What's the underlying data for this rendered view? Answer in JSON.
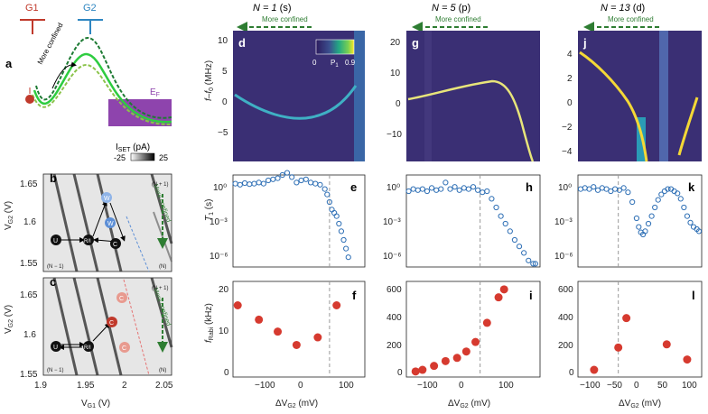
{
  "panel_letters": {
    "a": "a",
    "b": "b",
    "c": "c",
    "d": "d",
    "e": "e",
    "f": "f",
    "g": "g",
    "h": "h",
    "i": "i",
    "j": "j",
    "k": "k",
    "l": "l"
  },
  "gates": {
    "g1": "G1",
    "g2": "G2",
    "g1_color": "#c0392b",
    "g2_color": "#2e86c1"
  },
  "schematic": {
    "arrow_label": "More confined",
    "fermi_label": "E",
    "fermi_sub": "F"
  },
  "colorbar_iset": {
    "label_main": "I",
    "label_sub": "SET",
    "label_unit": " (pA)",
    "min": "-25",
    "max": "25"
  },
  "stability": {
    "ylabel_main": "V",
    "ylabel_sub": "G2",
    "ylabel_unit": " (V)",
    "xlabel_main": "V",
    "xlabel_sub": "G1",
    "xlabel_unit": " (V)",
    "yticks": [
      "1.65",
      "1.6",
      "1.55"
    ],
    "xticks": [
      "1.9",
      "1.95",
      "2",
      "2.05"
    ],
    "n_plus": "(N + 1)",
    "n_minus": "(N − 1)",
    "n": "(N)",
    "more_confined": "More confined",
    "nodes_b": {
      "u": "U",
      "rm": "R/I",
      "w": "W",
      "c": "C"
    },
    "nodes_c": {
      "u": "U",
      "rm": "R/I",
      "c": "C"
    }
  },
  "columns": [
    {
      "n": "N = 1",
      "orbital": " (s)"
    },
    {
      "n": "N = 5",
      "orbital": " (p)"
    },
    {
      "n": "N = 13",
      "orbital": " (d)"
    }
  ],
  "top_arrow_label": "More confined",
  "colorbar_p1": {
    "min": "0",
    "label": "P",
    "sub": "1",
    "max": "0.9"
  },
  "axis_labels": {
    "spectrum_y": "f–f",
    "spectrum_y_sub": "0",
    "spectrum_y_unit": " (MHz)",
    "t1_y": "T",
    "t1_y_sub": "1",
    "t1_y_unit": " (s)",
    "rabi_y": "f",
    "rabi_y_sub": "Rabi",
    "rabi_y_unit": " (kHz)",
    "x": "ΔV",
    "x_sub": "G2",
    "x_unit": " (mV)"
  },
  "ticks": {
    "d_y": [
      "10",
      "5",
      "0",
      "−5"
    ],
    "g_y": [
      "20",
      "10",
      "0",
      "−10"
    ],
    "j_y": [
      "4",
      "2",
      "0",
      "−2",
      "−4"
    ],
    "t1_y": [
      "10⁰",
      "10⁻³",
      "10⁻⁶"
    ],
    "f_y": [
      "20",
      "10",
      "0"
    ],
    "il_y": [
      "600",
      "400",
      "200",
      "0"
    ],
    "f_x": [
      "−100",
      "0",
      "100"
    ],
    "i_x": [
      "−100",
      "0",
      "100"
    ],
    "l_x": [
      "−100",
      "−50",
      "0",
      "50",
      "100"
    ]
  },
  "chart_data": [
    {
      "type": "scatter",
      "panel": "f",
      "title": "N = 1 (s)",
      "xlabel": "ΔV_G2 (mV)",
      "ylabel": "f_Rabi (kHz)",
      "xlim": [
        -150,
        130
      ],
      "ylim": [
        0,
        20
      ],
      "x": [
        -140,
        -95,
        -55,
        -15,
        30,
        70
      ],
      "values": [
        15,
        12,
        9.5,
        6.7,
        8.3,
        15
      ],
      "dashed_x": 55
    },
    {
      "type": "scatter",
      "panel": "i",
      "title": "N = 5 (p)",
      "xlabel": "ΔV_G2 (mV)",
      "ylabel": "f_Rabi (kHz)",
      "xlim": [
        -130,
        160
      ],
      "ylim": [
        0,
        600
      ],
      "x": [
        -110,
        -95,
        -70,
        -45,
        -20,
        0,
        20,
        45,
        70,
        82
      ],
      "values": [
        35,
        45,
        70,
        100,
        120,
        160,
        220,
        340,
        500,
        550
      ],
      "dashed_x": 30
    },
    {
      "type": "scatter",
      "panel": "l",
      "title": "N = 13 (d)",
      "xlabel": "ΔV_G2 (mV)",
      "ylabel": "f_Rabi (kHz)",
      "xlim": [
        -105,
        125
      ],
      "ylim": [
        0,
        600
      ],
      "x": [
        -75,
        -30,
        -15,
        60,
        98
      ],
      "values": [
        45,
        185,
        370,
        205,
        110
      ],
      "dashed_x": -30
    },
    {
      "type": "scatter",
      "panel": "e",
      "ylabel": "T1 (s)",
      "yscale": "log",
      "ylim": [
        -7.5,
        1
      ],
      "xlim": [
        -150,
        130
      ],
      "x": [
        -145,
        -135,
        -125,
        -115,
        -105,
        -95,
        -85,
        -75,
        -65,
        -55,
        -45,
        -35,
        -25,
        -15,
        -5,
        5,
        15,
        25,
        35,
        45,
        50,
        55,
        60,
        65,
        70,
        75,
        80,
        85,
        90,
        95
      ],
      "values": [
        0.2,
        0.1,
        0.25,
        0.15,
        0.2,
        0.3,
        0.2,
        0.5,
        0.6,
        0.7,
        1.0,
        1.2,
        0.8,
        0.3,
        0.5,
        0.6,
        0.3,
        0.2,
        0.1,
        -0.3,
        -0.8,
        -1.5,
        -2.2,
        -2.5,
        -2.8,
        -3.5,
        -4.2,
        -5.0,
        -5.8,
        -6.6
      ],
      "dashed_x": 55
    },
    {
      "type": "scatter",
      "panel": "h",
      "ylabel": "T1 (s)",
      "yscale": "log",
      "ylim": [
        -7.5,
        1
      ],
      "xlim": [
        -130,
        160
      ],
      "x": [
        -125,
        -115,
        -105,
        -95,
        -85,
        -75,
        -65,
        -55,
        -45,
        -35,
        -25,
        -15,
        -5,
        5,
        15,
        25,
        35,
        45,
        55,
        65,
        75,
        85,
        95,
        105,
        115,
        125,
        135,
        145,
        150
      ],
      "values": [
        -0.5,
        -0.3,
        -0.4,
        -0.3,
        -0.5,
        -0.2,
        -0.4,
        -0.3,
        0.3,
        -0.3,
        -0.1,
        -0.4,
        -0.2,
        -0.3,
        -0.1,
        -0.4,
        -0.6,
        -0.5,
        -1.2,
        -2.0,
        -2.8,
        -3.5,
        -4.2,
        -5.0,
        -5.6,
        -6.2,
        -6.9,
        -7.2,
        -7.2
      ],
      "dashed_x": 30
    },
    {
      "type": "scatter",
      "panel": "k",
      "ylabel": "T1 (s)",
      "yscale": "log",
      "ylim": [
        -7.5,
        1
      ],
      "xlim": [
        -105,
        125
      ],
      "x": [
        -100,
        -92,
        -84,
        -76,
        -68,
        -60,
        -52,
        -44,
        -36,
        -28,
        -20,
        -12,
        -4,
        4,
        8,
        12,
        16,
        20,
        26,
        32,
        38,
        44,
        50,
        56,
        62,
        68,
        74,
        80,
        86,
        92,
        98,
        104,
        110,
        116,
        120
      ],
      "values": [
        -0.3,
        -0.2,
        -0.3,
        -0.1,
        -0.4,
        -0.2,
        -0.3,
        -0.5,
        -0.3,
        -0.4,
        -0.2,
        -0.6,
        -1.5,
        -3.0,
        -3.8,
        -4.3,
        -4.5,
        -4.2,
        -3.5,
        -2.8,
        -2.0,
        -1.3,
        -0.8,
        -0.5,
        -0.3,
        -0.3,
        -0.5,
        -0.7,
        -1.2,
        -2.0,
        -2.8,
        -3.4,
        -3.8,
        -4.0,
        -4.2
      ],
      "dashed_x": -30
    }
  ]
}
